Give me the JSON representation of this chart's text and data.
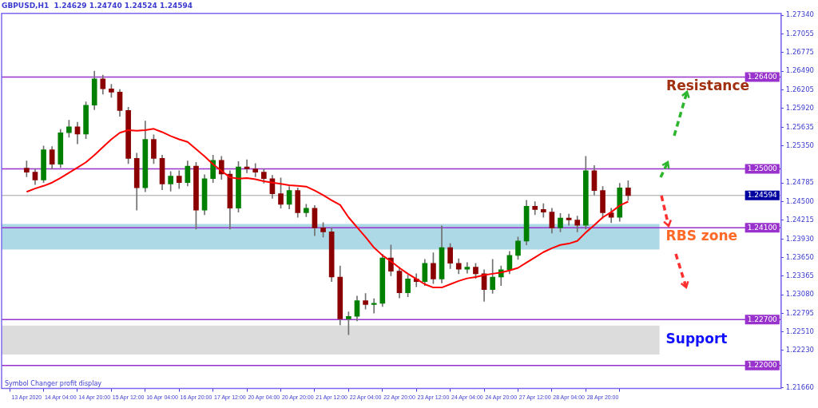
{
  "chart_data": {
    "type": "candlestick",
    "title": "GBPUSD,H1  1.24629 1.24740 1.24524 1.24594",
    "categories": [
      "13 Apr 2020",
      null,
      null,
      null,
      "14 Apr 04:00",
      null,
      null,
      null,
      "14 Apr 20:00",
      null,
      null,
      null,
      "15 Apr 12:00",
      null,
      null,
      null,
      "16 Apr 04:00",
      null,
      null,
      null,
      "16 Apr 20:00",
      null,
      null,
      null,
      "17 Apr 12:00",
      null,
      null,
      null,
      "20 Apr 04:00",
      null,
      null,
      null,
      "20 Apr 20:00",
      null,
      null,
      null,
      "21 Apr 12:00",
      null,
      null,
      null,
      "22 Apr 04:00",
      null,
      null,
      null,
      "22 Apr 20:00",
      null,
      null,
      null,
      "23 Apr 12:00",
      null,
      null,
      null,
      "24 Apr 04:00",
      null,
      null,
      null,
      "24 Apr 20:00",
      null,
      null,
      null,
      "27 Apr 12:00",
      null,
      null,
      null,
      "28 Apr 04:00",
      null,
      null,
      null,
      "28 Apr 20:00",
      null,
      null,
      null
    ],
    "ohlc": [
      [
        1.2501,
        1.2512,
        1.2488,
        1.2495
      ],
      [
        1.2495,
        1.25,
        1.2476,
        1.2483
      ],
      [
        1.2483,
        1.2535,
        1.2479,
        1.2529
      ],
      [
        1.2529,
        1.2534,
        1.25,
        1.2507
      ],
      [
        1.2507,
        1.256,
        1.2502,
        1.2555
      ],
      [
        1.2555,
        1.2574,
        1.2548,
        1.2564
      ],
      [
        1.2564,
        1.2571,
        1.2538,
        1.2553
      ],
      [
        1.2553,
        1.2602,
        1.2546,
        1.2597
      ],
      [
        1.2597,
        1.2649,
        1.259,
        1.2637
      ],
      [
        1.2637,
        1.2643,
        1.2614,
        1.2622
      ],
      [
        1.2622,
        1.2629,
        1.2609,
        1.2617
      ],
      [
        1.2617,
        1.2621,
        1.258,
        1.2589
      ],
      [
        1.2589,
        1.2594,
        1.2508,
        1.2516
      ],
      [
        1.2516,
        1.2524,
        1.2437,
        1.2471
      ],
      [
        1.2471,
        1.2573,
        1.2465,
        1.2545
      ],
      [
        1.2545,
        1.2552,
        1.2508,
        1.2516
      ],
      [
        1.2516,
        1.2521,
        1.2468,
        1.2477
      ],
      [
        1.2477,
        1.2496,
        1.2466,
        1.2489
      ],
      [
        1.2489,
        1.2497,
        1.247,
        1.2479
      ],
      [
        1.2479,
        1.2512,
        1.2474,
        1.2504
      ],
      [
        1.2504,
        1.251,
        1.2408,
        1.2437
      ],
      [
        1.2437,
        1.2491,
        1.243,
        1.2485
      ],
      [
        1.2485,
        1.2521,
        1.2479,
        1.2513
      ],
      [
        1.2513,
        1.2519,
        1.2484,
        1.2492
      ],
      [
        1.2492,
        1.2497,
        1.2408,
        1.244
      ],
      [
        1.244,
        1.2511,
        1.2434,
        1.2503
      ],
      [
        1.2503,
        1.2514,
        1.2494,
        1.25
      ],
      [
        1.25,
        1.2508,
        1.2488,
        1.2495
      ],
      [
        1.2495,
        1.25,
        1.2478,
        1.2485
      ],
      [
        1.2485,
        1.249,
        1.2455,
        1.2462
      ],
      [
        1.2462,
        1.2486,
        1.244,
        1.2446
      ],
      [
        1.2446,
        1.2473,
        1.2439,
        1.2467
      ],
      [
        1.2467,
        1.2471,
        1.2426,
        1.2433
      ],
      [
        1.2433,
        1.2446,
        1.2427,
        1.244
      ],
      [
        1.244,
        1.2444,
        1.2398,
        1.241
      ],
      [
        1.241,
        1.2418,
        1.2396,
        1.2404
      ],
      [
        1.2404,
        1.241,
        1.2328,
        1.2335
      ],
      [
        1.2335,
        1.2352,
        1.2262,
        1.2271
      ],
      [
        1.2271,
        1.2282,
        1.2247,
        1.2275
      ],
      [
        1.2275,
        1.2306,
        1.2268,
        1.2299
      ],
      [
        1.2299,
        1.231,
        1.2286,
        1.2293
      ],
      [
        1.2293,
        1.2302,
        1.228,
        1.2295
      ],
      [
        1.2295,
        1.237,
        1.229,
        1.2364
      ],
      [
        1.2364,
        1.2384,
        1.2337,
        1.2344
      ],
      [
        1.2344,
        1.235,
        1.2303,
        1.2311
      ],
      [
        1.2311,
        1.2338,
        1.2305,
        1.2332
      ],
      [
        1.2332,
        1.234,
        1.232,
        1.2328
      ],
      [
        1.2328,
        1.2362,
        1.2322,
        1.2356
      ],
      [
        1.2356,
        1.2372,
        1.2325,
        1.2332
      ],
      [
        1.2332,
        1.2413,
        1.2326,
        1.238
      ],
      [
        1.238,
        1.2386,
        1.2348,
        1.2356
      ],
      [
        1.2356,
        1.2363,
        1.234,
        1.2347
      ],
      [
        1.2347,
        1.2357,
        1.2341,
        1.235
      ],
      [
        1.235,
        1.2356,
        1.2333,
        1.234
      ],
      [
        1.234,
        1.2346,
        1.2298,
        1.2316
      ],
      [
        1.2316,
        1.2362,
        1.231,
        1.2335
      ],
      [
        1.2335,
        1.2352,
        1.2322,
        1.2346
      ],
      [
        1.2346,
        1.2374,
        1.234,
        1.2368
      ],
      [
        1.2368,
        1.2396,
        1.2362,
        1.239
      ],
      [
        1.239,
        1.2452,
        1.2384,
        1.2443
      ],
      [
        1.2443,
        1.245,
        1.243,
        1.2438
      ],
      [
        1.2438,
        1.2447,
        1.2426,
        1.2434
      ],
      [
        1.2434,
        1.244,
        1.2402,
        1.241
      ],
      [
        1.241,
        1.2432,
        1.2404,
        1.2425
      ],
      [
        1.2425,
        1.2431,
        1.2414,
        1.2422
      ],
      [
        1.2422,
        1.2428,
        1.2404,
        1.2414
      ],
      [
        1.2414,
        1.2519,
        1.2408,
        1.2497
      ],
      [
        1.2497,
        1.2505,
        1.246,
        1.2467
      ],
      [
        1.2467,
        1.2473,
        1.2425,
        1.2433
      ],
      [
        1.2433,
        1.244,
        1.2418,
        1.2426
      ],
      [
        1.2426,
        1.2478,
        1.242,
        1.2471
      ],
      [
        1.2471,
        1.2482,
        1.2452,
        1.24594
      ]
    ],
    "series": [
      {
        "type": "line",
        "color": "#ff0000",
        "values": [
          1.2465,
          1.247,
          1.2474,
          1.2479,
          1.2486,
          1.2494,
          1.2502,
          1.251,
          1.2521,
          1.2533,
          1.2545,
          1.2555,
          1.2559,
          1.2558,
          1.2559,
          1.2561,
          1.2556,
          1.255,
          1.2545,
          1.2541,
          1.253,
          1.2519,
          1.2507,
          1.2497,
          1.2487,
          1.2485,
          1.2486,
          1.2484,
          1.2481,
          1.2479,
          1.2477,
          1.2475,
          1.2474,
          1.2473,
          1.2467,
          1.246,
          1.2452,
          1.2445,
          1.2426,
          1.2411,
          1.2396,
          1.238,
          1.2368,
          1.2359,
          1.2349,
          1.234,
          1.2332,
          1.2324,
          1.2319,
          1.2319,
          1.2324,
          1.2329,
          1.2333,
          1.2335,
          1.2338,
          1.234,
          1.2342,
          1.2345,
          1.2349,
          1.2357,
          1.2365,
          1.2373,
          1.2379,
          1.2384,
          1.2386,
          1.239,
          1.2403,
          1.2414,
          1.2426,
          1.2434,
          1.2444,
          1.245
        ]
      }
    ],
    "ylim": [
      1.2165,
      1.2737
    ],
    "yticks": [
      {
        "value": 1.2734,
        "label": "1.27340"
      },
      {
        "value": 1.27055,
        "label": "1.27055"
      },
      {
        "value": 1.26775,
        "label": "1.26775"
      },
      {
        "value": 1.2649,
        "label": "1.26490"
      },
      {
        "value": 1.26205,
        "label": "1.26205"
      },
      {
        "value": 1.2592,
        "label": "1.25920"
      },
      {
        "value": 1.25635,
        "label": "1.25635"
      },
      {
        "value": 1.2535,
        "label": "1.25350"
      },
      {
        "value": 1.24785,
        "label": "1.24785"
      },
      {
        "value": 1.245,
        "label": "1.24500"
      },
      {
        "value": 1.24215,
        "label": "1.24215"
      },
      {
        "value": 1.2393,
        "label": "1.23930"
      },
      {
        "value": 1.2365,
        "label": "1.23650"
      },
      {
        "value": 1.23365,
        "label": "1.23365"
      },
      {
        "value": 1.2308,
        "label": "1.23080"
      },
      {
        "value": 1.22795,
        "label": "1.22795"
      },
      {
        "value": 1.2251,
        "label": "1.22510"
      },
      {
        "value": 1.2223,
        "label": "1.22230"
      },
      {
        "value": 1.2166,
        "label": "1.21660"
      }
    ],
    "ref_lines": [
      {
        "axis": "y",
        "value": 1.264,
        "label": "1.26400",
        "color": "#9932cc"
      },
      {
        "axis": "y",
        "value": 1.25,
        "label": "1.25000",
        "color": "#9932cc"
      },
      {
        "axis": "y",
        "value": 1.24594,
        "label": "1.24594",
        "color": "#a0a0a0"
      },
      {
        "axis": "y",
        "value": 1.241,
        "label": "1.24100",
        "color": "#9932cc"
      },
      {
        "axis": "y",
        "value": 1.227,
        "label": "1.22700",
        "color": "#9932cc"
      },
      {
        "axis": "y",
        "value": 1.22,
        "label": "1.22000",
        "color": "#9932cc"
      }
    ],
    "bands": [
      {
        "axis": "y",
        "from": 1.2377,
        "to": 1.2416,
        "label": "RBS zone",
        "color": "#add8e6"
      },
      {
        "axis": "y",
        "from": 1.2217,
        "to": 1.2261,
        "label": "Support",
        "color": "#dcdcdc"
      }
    ],
    "annotations": [
      "Resistance",
      "Symbol Changer profit display"
    ]
  }
}
